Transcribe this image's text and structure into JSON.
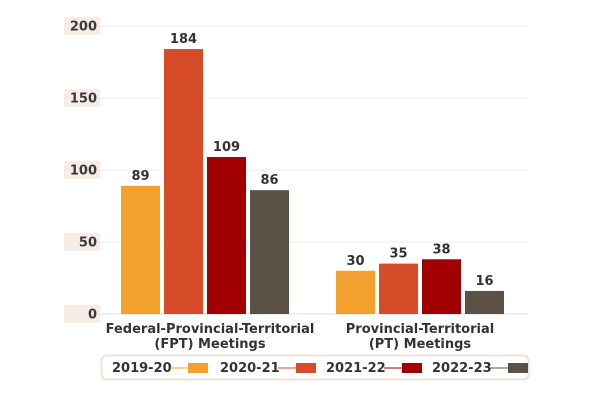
{
  "chart_data": {
    "type": "bar",
    "categories": [
      "Federal-Provincial-Territorial (FPT) Meetings",
      "Provincial-Territorial (PT) Meetings"
    ],
    "category_lines": [
      [
        "Federal-Provincial-Territorial",
        "(FPT) Meetings"
      ],
      [
        "Provincial-Territorial",
        "(PT) Meetings"
      ]
    ],
    "series": [
      {
        "name": "2019-20",
        "values": [
          89,
          30
        ],
        "color": "#f2a12e"
      },
      {
        "name": "2020-21",
        "values": [
          184,
          35
        ],
        "color": "#d64b28"
      },
      {
        "name": "2021-22",
        "values": [
          109,
          38
        ],
        "color": "#a00000"
      },
      {
        "name": "2022-23",
        "values": [
          86,
          16
        ],
        "color": "#5b5147"
      }
    ],
    "yticks": [
      0,
      50,
      100,
      150,
      200
    ],
    "ylim": [
      0,
      200
    ],
    "grid": true,
    "legend_position": "bottom",
    "tick_band_color": "#f7ece6",
    "legend_border_color": "#f0e1d8"
  }
}
